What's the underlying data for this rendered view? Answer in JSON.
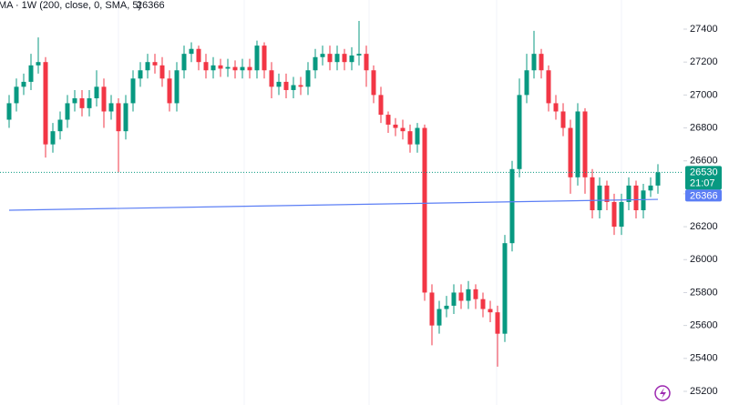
{
  "chart_data": {
    "type": "candlestick",
    "legend": {
      "title": "MA · 1W (200, close, 0, SMA, 5)"
    },
    "countdown": "21:07",
    "up_color": "#089981",
    "down_color": "#f23645",
    "ma_color": "#5b7ef5",
    "ylim": [
      25117,
      27577
    ],
    "yticks": [
      25200,
      25400,
      25600,
      25800,
      26000,
      26200,
      26400,
      26600,
      26800,
      27000,
      27200,
      27400
    ],
    "open": [
      26850,
      26950,
      27050,
      27080,
      27180,
      27200,
      26700,
      26780,
      26850,
      26950,
      26980,
      26920,
      26980,
      27050,
      26900,
      26950,
      26780,
      26950,
      27100,
      27150,
      27200,
      27180,
      27100,
      26950,
      27150,
      27250,
      27280,
      27200,
      27150,
      27180,
      27160,
      27170,
      27150,
      27170,
      27150,
      27300,
      27150,
      27050,
      27080,
      27030,
      27060,
      27050,
      27150,
      27230,
      27250,
      27200,
      27250,
      27200,
      27240,
      27250,
      27150,
      27000,
      26880,
      26820,
      26800,
      26780,
      26700,
      26800,
      25800,
      25600,
      25700,
      25720,
      25800,
      25750,
      25820,
      25760,
      25700,
      25680,
      25550,
      26100,
      26550,
      27000,
      27150,
      27250,
      27150,
      26950,
      26900,
      26800,
      26500,
      26900,
      26500,
      26300,
      26450,
      26350,
      26200,
      26350,
      26450,
      26300,
      26420,
      26450
    ],
    "high": [
      27000,
      27100,
      27130,
      27250,
      27350,
      27230,
      26830,
      26900,
      27000,
      27030,
      27030,
      27030,
      27150,
      27100,
      27000,
      26980,
      27000,
      27150,
      27200,
      27250,
      27250,
      27230,
      27150,
      27200,
      27300,
      27320,
      27300,
      27250,
      27230,
      27220,
      27220,
      27210,
      27220,
      27220,
      27330,
      27320,
      27200,
      27130,
      27130,
      27110,
      27110,
      27200,
      27280,
      27300,
      27300,
      27300,
      27280,
      27290,
      27450,
      27300,
      27180,
      27050,
      26900,
      26860,
      26850,
      26820,
      26830,
      26820,
      25850,
      25750,
      25780,
      25850,
      25850,
      25870,
      25850,
      25800,
      25750,
      25720,
      26150,
      26600,
      27100,
      27250,
      27390,
      27280,
      27180,
      27000,
      26950,
      26850,
      26950,
      26920,
      26550,
      26500,
      26480,
      26400,
      26400,
      26500,
      26480,
      26460,
      26500,
      26580
    ],
    "low": [
      26800,
      26900,
      27000,
      27030,
      27130,
      26620,
      26650,
      26730,
      26800,
      26900,
      26870,
      26870,
      26930,
      26800,
      26850,
      26530,
      26730,
      26900,
      27050,
      27100,
      27130,
      27050,
      26900,
      26900,
      27100,
      27200,
      27150,
      27100,
      27100,
      27110,
      27110,
      27100,
      27100,
      27100,
      27100,
      27100,
      26980,
      27000,
      26980,
      26980,
      27000,
      27000,
      27100,
      27180,
      27150,
      27150,
      27150,
      27150,
      27180,
      27050,
      26950,
      26830,
      26770,
      26750,
      26730,
      26650,
      26650,
      25750,
      25480,
      25550,
      25650,
      25670,
      25700,
      25700,
      25700,
      25650,
      25620,
      25350,
      25500,
      26050,
      26500,
      26950,
      27100,
      27100,
      26900,
      26850,
      26750,
      26400,
      26450,
      26400,
      26250,
      26250,
      26300,
      26150,
      26150,
      26300,
      26250,
      26250,
      26380,
      26400
    ],
    "close": [
      26950,
      27050,
      27080,
      27180,
      27200,
      26700,
      26780,
      26850,
      26950,
      26980,
      26920,
      26980,
      27050,
      26900,
      26950,
      26780,
      26950,
      27100,
      27150,
      27200,
      27180,
      27100,
      26950,
      27150,
      27250,
      27280,
      27200,
      27150,
      27180,
      27160,
      27170,
      27150,
      27170,
      27150,
      27300,
      27150,
      27050,
      27080,
      27030,
      27060,
      27050,
      27150,
      27230,
      27250,
      27200,
      27250,
      27200,
      27240,
      27250,
      27150,
      27000,
      26880,
      26820,
      26800,
      26780,
      26700,
      26800,
      25800,
      25600,
      25700,
      25720,
      25800,
      25750,
      25820,
      25760,
      25700,
      25680,
      25550,
      26100,
      26550,
      27000,
      27150,
      27250,
      27150,
      26950,
      26900,
      26800,
      26500,
      26900,
      26500,
      26300,
      26450,
      26350,
      26200,
      26350,
      26450,
      26300,
      26420,
      26450,
      26530
    ],
    "ma_index": [
      0,
      89
    ],
    "ma_values": [
      26300,
      26366
    ]
  }
}
